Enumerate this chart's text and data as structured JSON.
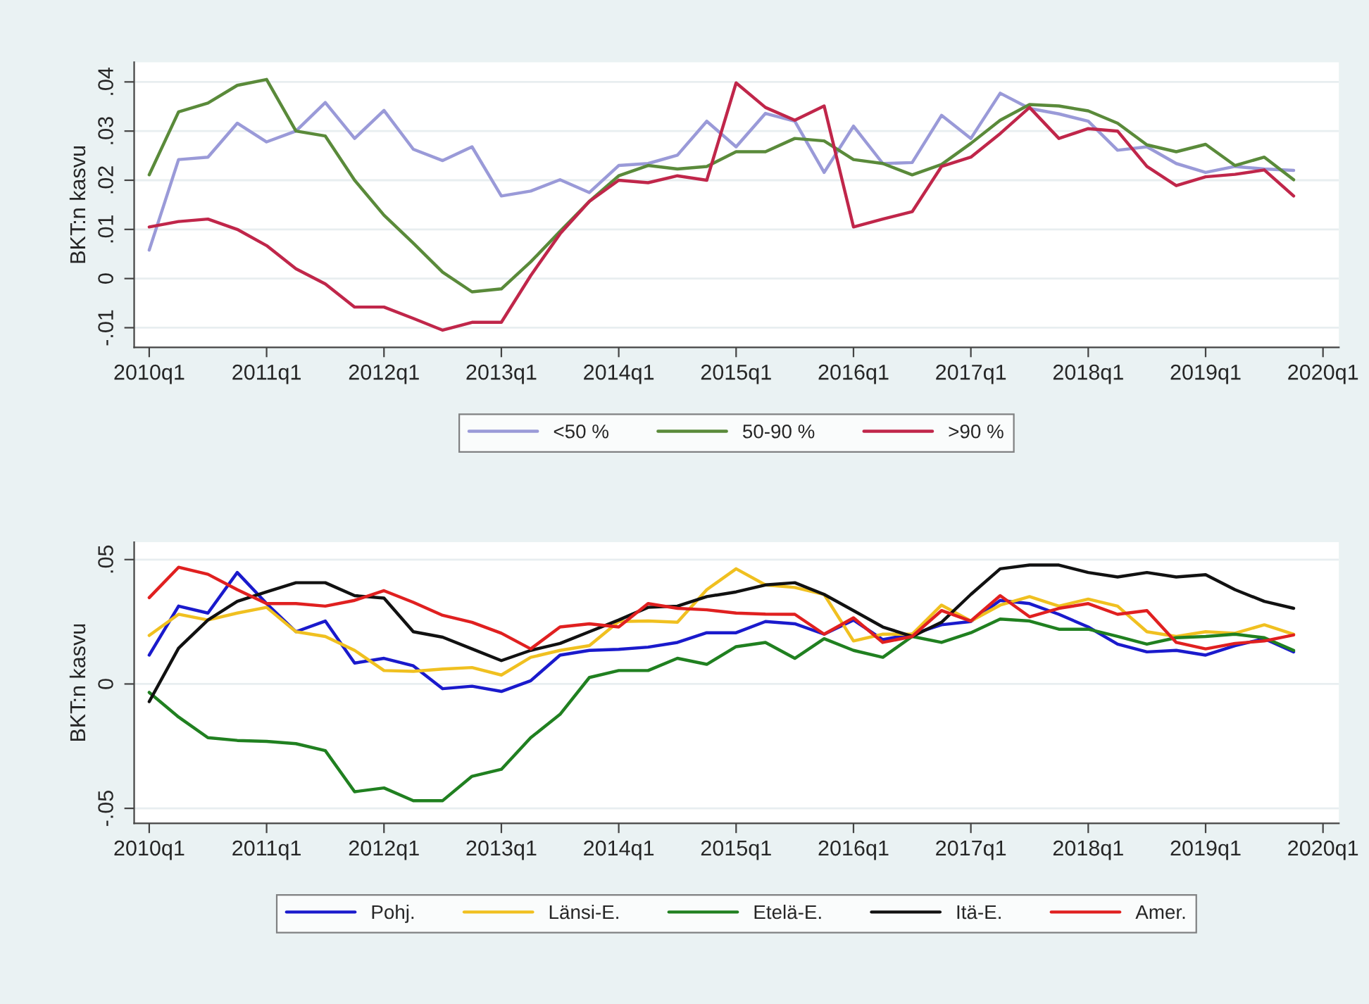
{
  "chart_data": [
    {
      "type": "line",
      "ylabel": "BKT:n kasvu",
      "legend": "bottom",
      "grid": "y",
      "line_style": "solid",
      "marker": "none",
      "x": [
        "2010-01",
        "2010-04",
        "2010-07",
        "2010-10",
        "2011-01",
        "2011-04",
        "2011-07",
        "2011-10",
        "2012-01",
        "2012-04",
        "2012-07",
        "2012-10",
        "2013-01",
        "2013-04",
        "2013-07",
        "2013-10",
        "2014-01",
        "2014-04",
        "2014-07",
        "2014-10",
        "2015-01",
        "2015-04",
        "2015-07",
        "2015-10",
        "2016-01",
        "2016-04",
        "2016-07",
        "2016-10",
        "2017-01",
        "2017-04",
        "2017-07",
        "2017-10",
        "2018-01",
        "2018-04",
        "2018-07",
        "2018-10",
        "2019-01",
        "2019-04",
        "2019-07",
        "2019-10"
      ],
      "xlim": [
        "2009-11-15",
        "2020-02-20"
      ],
      "xticks": [
        {
          "value": "2010-01",
          "label": "2010q1"
        },
        {
          "value": "2011-01",
          "label": "2011q1"
        },
        {
          "value": "2012-01",
          "label": "2012q1"
        },
        {
          "value": "2013-01",
          "label": "2013q1"
        },
        {
          "value": "2014-01",
          "label": "2014q1"
        },
        {
          "value": "2015-01",
          "label": "2015q1"
        },
        {
          "value": "2016-01",
          "label": "2016q1"
        },
        {
          "value": "2017-01",
          "label": "2017q1"
        },
        {
          "value": "2018-01",
          "label": "2018q1"
        },
        {
          "value": "2019-01",
          "label": "2019q1"
        },
        {
          "value": "2020-01",
          "label": "2020q1"
        }
      ],
      "ylim": [
        -0.014,
        0.044
      ],
      "yticks": [
        {
          "value": -0.01,
          "label": "-.01"
        },
        {
          "value": 0,
          "label": "0"
        },
        {
          "value": 0.01,
          "label": ".01"
        },
        {
          "value": 0.02,
          "label": ".02"
        },
        {
          "value": 0.03,
          "label": ".03"
        },
        {
          "value": 0.04,
          "label": ".04"
        }
      ],
      "series": [
        {
          "name": "<50 %",
          "color": "#9a9ad8",
          "values": [
            0.0058,
            0.0242,
            0.0247,
            0.0316,
            0.0278,
            0.03,
            0.0358,
            0.0285,
            0.0342,
            0.0263,
            0.024,
            0.0268,
            0.0168,
            0.0178,
            0.0201,
            0.0175,
            0.023,
            0.0234,
            0.0251,
            0.032,
            0.0268,
            0.0336,
            0.032,
            0.0216,
            0.031,
            0.0234,
            0.0236,
            0.0332,
            0.0285,
            0.0377,
            0.0346,
            0.0335,
            0.032,
            0.0261,
            0.0268,
            0.0234,
            0.0216,
            0.0228,
            0.0223,
            0.022
          ]
        },
        {
          "name": "50-90 %",
          "color": "#5a8a3a",
          "values": [
            0.0211,
            0.0339,
            0.0357,
            0.0393,
            0.0405,
            0.03,
            0.029,
            0.02,
            0.0129,
            0.0072,
            0.0013,
            -0.0027,
            -0.0021,
            0.0034,
            0.0096,
            0.0157,
            0.0209,
            0.023,
            0.0223,
            0.0228,
            0.0258,
            0.0258,
            0.0285,
            0.028,
            0.0242,
            0.0234,
            0.0211,
            0.0232,
            0.0275,
            0.0322,
            0.0354,
            0.0351,
            0.0341,
            0.0316,
            0.0272,
            0.0258,
            0.0273,
            0.023,
            0.0247,
            0.0201
          ]
        },
        {
          "name": ">90 %",
          "color": "#c0264a",
          "values": [
            0.0105,
            0.0116,
            0.0121,
            0.01,
            0.0067,
            0.002,
            -0.0011,
            -0.0058,
            -0.0058,
            -0.0081,
            -0.0105,
            -0.0089,
            -0.0089,
            0.0006,
            0.0091,
            0.0157,
            0.02,
            0.0195,
            0.0209,
            0.02,
            0.0398,
            0.0348,
            0.0322,
            0.0351,
            0.0105,
            0.0121,
            0.0136,
            0.0228,
            0.0247,
            0.0295,
            0.0348,
            0.0285,
            0.0305,
            0.03,
            0.0228,
            0.0189,
            0.0207,
            0.0212,
            0.0221,
            0.0168
          ]
        }
      ]
    },
    {
      "type": "line",
      "ylabel": "BKT:n kasvu",
      "legend": "bottom",
      "grid": "y",
      "line_style": "solid",
      "marker": "none",
      "x": [
        "2010-01",
        "2010-04",
        "2010-07",
        "2010-10",
        "2011-01",
        "2011-04",
        "2011-07",
        "2011-10",
        "2012-01",
        "2012-04",
        "2012-07",
        "2012-10",
        "2013-01",
        "2013-04",
        "2013-07",
        "2013-10",
        "2014-01",
        "2014-04",
        "2014-07",
        "2014-10",
        "2015-01",
        "2015-04",
        "2015-07",
        "2015-10",
        "2016-01",
        "2016-04",
        "2016-07",
        "2016-10",
        "2017-01",
        "2017-04",
        "2017-07",
        "2017-10",
        "2018-01",
        "2018-04",
        "2018-07",
        "2018-10",
        "2019-01",
        "2019-04",
        "2019-07",
        "2019-10"
      ],
      "xlim": [
        "2009-11-15",
        "2020-02-20"
      ],
      "xticks": [
        {
          "value": "2010-01",
          "label": "2010q1"
        },
        {
          "value": "2011-01",
          "label": "2011q1"
        },
        {
          "value": "2012-01",
          "label": "2012q1"
        },
        {
          "value": "2013-01",
          "label": "2013q1"
        },
        {
          "value": "2014-01",
          "label": "2014q1"
        },
        {
          "value": "2015-01",
          "label": "2015q1"
        },
        {
          "value": "2016-01",
          "label": "2016q1"
        },
        {
          "value": "2017-01",
          "label": "2017q1"
        },
        {
          "value": "2018-01",
          "label": "2018q1"
        },
        {
          "value": "2019-01",
          "label": "2019q1"
        },
        {
          "value": "2020-01",
          "label": "2020q1"
        }
      ],
      "ylim": [
        -0.056,
        0.057
      ],
      "yticks": [
        {
          "value": -0.05,
          "label": "-.05"
        },
        {
          "value": 0,
          "label": "0"
        },
        {
          "value": 0.05,
          "label": ".05"
        }
      ],
      "series": [
        {
          "name": "Pohj.",
          "color": "#1a1acc",
          "values": [
            0.0116,
            0.0313,
            0.0285,
            0.0448,
            0.0323,
            0.021,
            0.0253,
            0.0084,
            0.0103,
            0.0073,
            -0.0019,
            -0.0009,
            -0.003,
            0.0013,
            0.0116,
            0.0135,
            0.0139,
            0.0148,
            0.0167,
            0.0206,
            0.0206,
            0.0251,
            0.0242,
            0.02,
            0.0257,
            0.0178,
            0.02,
            0.0238,
            0.0251,
            0.0336,
            0.0323,
            0.028,
            0.0229,
            0.016,
            0.0129,
            0.0135,
            0.0116,
            0.0154,
            0.0182,
            0.0129
          ]
        },
        {
          "name": "Länsi-E.",
          "color": "#f0c020",
          "values": [
            0.0195,
            0.028,
            0.0257,
            0.0285,
            0.0308,
            0.021,
            0.0191,
            0.0135,
            0.0054,
            0.0051,
            0.006,
            0.0066,
            0.0036,
            0.0107,
            0.0135,
            0.0154,
            0.0251,
            0.0253,
            0.0248,
            0.0379,
            0.0463,
            0.0398,
            0.0388,
            0.036,
            0.0173,
            0.02,
            0.02,
            0.0317,
            0.0253,
            0.0317,
            0.0351,
            0.0313,
            0.0341,
            0.0313,
            0.021,
            0.0191,
            0.021,
            0.0204,
            0.0238,
            0.02
          ]
        },
        {
          "name": "Etelä-E.",
          "color": "#208020",
          "values": [
            -0.0034,
            -0.0133,
            -0.0216,
            -0.0227,
            -0.0231,
            -0.024,
            -0.0268,
            -0.0433,
            -0.0418,
            -0.0469,
            -0.0469,
            -0.0371,
            -0.0343,
            -0.0216,
            -0.0122,
            0.0026,
            0.0054,
            0.0054,
            0.0103,
            0.0079,
            0.015,
            0.0167,
            0.0103,
            0.0182,
            0.0135,
            0.0107,
            0.0191,
            0.0167,
            0.0206,
            0.0261,
            0.0253,
            0.022,
            0.022,
            0.0191,
            0.016,
            0.0186,
            0.0191,
            0.02,
            0.0186,
            0.0135
          ]
        },
        {
          "name": "Itä-E.",
          "color": "#111111",
          "values": [
            -0.0071,
            0.0144,
            0.0257,
            0.0332,
            0.037,
            0.0407,
            0.0407,
            0.0355,
            0.0345,
            0.021,
            0.0188,
            0.0141,
            0.0094,
            0.0135,
            0.0163,
            0.021,
            0.0257,
            0.0308,
            0.0313,
            0.0351,
            0.037,
            0.0398,
            0.0407,
            0.036,
            0.0295,
            0.0229,
            0.0191,
            0.0248,
            0.036,
            0.0463,
            0.0478,
            0.0478,
            0.0448,
            0.043,
            0.0448,
            0.043,
            0.0439,
            0.0379,
            0.0332,
            0.0304
          ]
        },
        {
          "name": "Amer.",
          "color": "#e02020",
          "values": [
            0.0347,
            0.0469,
            0.0441,
            0.0379,
            0.0323,
            0.0323,
            0.0313,
            0.0336,
            0.0375,
            0.0328,
            0.0276,
            0.0248,
            0.0204,
            0.0141,
            0.0229,
            0.0242,
            0.0229,
            0.0323,
            0.0304,
            0.0298,
            0.0285,
            0.0281,
            0.028,
            0.02,
            0.0266,
            0.0167,
            0.0191,
            0.0295,
            0.0253,
            0.0355,
            0.027,
            0.0304,
            0.0323,
            0.028,
            0.0295,
            0.0167,
            0.0141,
            0.0163,
            0.0173,
            0.0197
          ]
        }
      ]
    }
  ]
}
